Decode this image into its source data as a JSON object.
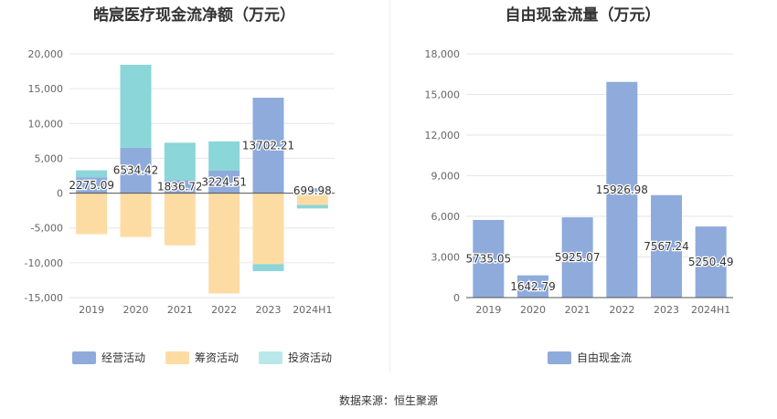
{
  "chart_data": [
    {
      "type": "bar",
      "stacked": true,
      "title": "皓宸医疗现金流净额（万元）",
      "categories": [
        "2019",
        "2020",
        "2021",
        "2022",
        "2023",
        "2024H1"
      ],
      "ylim": [
        -15000,
        20000
      ],
      "yticks": [
        20000,
        15000,
        10000,
        5000,
        0,
        -5000,
        -10000,
        -15000
      ],
      "ytick_labels": [
        "20,000",
        "15,000",
        "10,000",
        "5,000",
        "0",
        "-5,000",
        "-10,000",
        "-15,000"
      ],
      "grid": true,
      "legend_position": "bottom",
      "series": [
        {
          "name": "经营活动",
          "color": "#8eabdb",
          "values": [
            2275.09,
            6534.42,
            1836.72,
            3224.51,
            13702.21,
            699.98
          ]
        },
        {
          "name": "筹资活动",
          "color": "#fddca4",
          "values": [
            -5900,
            -6300,
            -7500,
            -14400,
            -10200,
            -1700
          ]
        },
        {
          "name": "投资活动",
          "color": "#8ad6d9",
          "values": [
            1000,
            11900,
            5400,
            4200,
            -1000,
            -500
          ]
        }
      ],
      "data_labels": [
        "2275.09",
        "6534.42",
        "1836.72",
        "3224.51",
        "13702.21",
        "699.98"
      ]
    },
    {
      "type": "bar",
      "title": "自由现金流量（万元）",
      "categories": [
        "2019",
        "2020",
        "2021",
        "2022",
        "2023",
        "2024H1"
      ],
      "ylim": [
        0,
        18000
      ],
      "yticks": [
        18000,
        15000,
        12000,
        9000,
        6000,
        3000,
        0
      ],
      "ytick_labels": [
        "18,000",
        "15,000",
        "12,000",
        "9,000",
        "6,000",
        "3,000",
        "0"
      ],
      "grid": true,
      "legend_position": "bottom",
      "series": [
        {
          "name": "自由现金流",
          "color": "#8eabdb",
          "values": [
            5735.05,
            1642.79,
            5925.07,
            15926.98,
            7567.24,
            5250.49
          ]
        }
      ],
      "data_labels": [
        "5735.05",
        "1642.79",
        "5925.07",
        "15926.98",
        "7567.24",
        "5250.49"
      ]
    }
  ],
  "footer": {
    "source": "数据来源：恒生聚源"
  }
}
